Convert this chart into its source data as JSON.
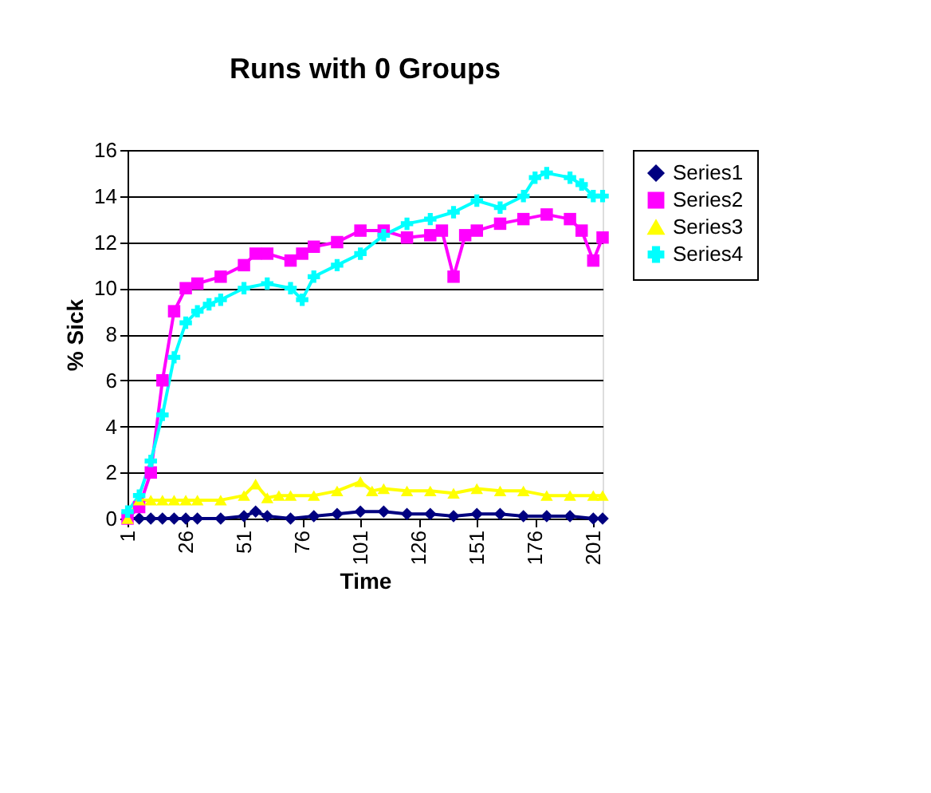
{
  "chart_data": {
    "type": "line",
    "title": "Runs with 0 Groups",
    "xlabel": "Time",
    "ylabel": "% Sick",
    "xlim": [
      1,
      205
    ],
    "xticks": [
      1,
      26,
      51,
      76,
      101,
      126,
      151,
      176,
      201
    ],
    "ylim": [
      0,
      16
    ],
    "yticks": [
      0,
      2,
      4,
      6,
      8,
      10,
      12,
      14,
      16
    ],
    "grid": "y",
    "legend": "right",
    "series": [
      {
        "name": "Series1",
        "color": "#000080",
        "marker": "diamond",
        "x": [
          1,
          6,
          11,
          16,
          21,
          26,
          31,
          41,
          51,
          56,
          61,
          71,
          81,
          91,
          101,
          111,
          121,
          131,
          141,
          151,
          161,
          171,
          181,
          191,
          201,
          205
        ],
        "values": [
          0,
          0,
          0,
          0,
          0,
          0,
          0,
          0,
          0.1,
          0.3,
          0.1,
          0,
          0.1,
          0.2,
          0.3,
          0.3,
          0.2,
          0.2,
          0.1,
          0.2,
          0.2,
          0.1,
          0.1,
          0.1,
          0,
          0
        ]
      },
      {
        "name": "Series2",
        "color": "#ff00ff",
        "marker": "square",
        "x": [
          1,
          6,
          11,
          16,
          21,
          26,
          31,
          41,
          51,
          56,
          61,
          71,
          76,
          81,
          91,
          101,
          111,
          121,
          131,
          136,
          141,
          146,
          151,
          161,
          171,
          181,
          191,
          196,
          201,
          205
        ],
        "values": [
          0,
          0.5,
          2,
          6,
          9,
          10,
          10.2,
          10.5,
          11,
          11.5,
          11.5,
          11.2,
          11.5,
          11.8,
          12,
          12.5,
          12.5,
          12.2,
          12.3,
          12.5,
          10.5,
          12.3,
          12.5,
          12.8,
          13,
          13.2,
          13,
          12.5,
          11.2,
          12.2
        ]
      },
      {
        "name": "Series3",
        "color": "#ffff00",
        "marker": "triangle",
        "x": [
          1,
          6,
          11,
          16,
          21,
          26,
          31,
          41,
          51,
          56,
          61,
          66,
          71,
          81,
          91,
          101,
          106,
          111,
          121,
          131,
          141,
          151,
          161,
          171,
          181,
          191,
          201,
          205
        ],
        "values": [
          0,
          0.8,
          0.8,
          0.8,
          0.8,
          0.8,
          0.8,
          0.8,
          1,
          1.5,
          0.9,
          1,
          1,
          1,
          1.2,
          1.6,
          1.2,
          1.3,
          1.2,
          1.2,
          1.1,
          1.3,
          1.2,
          1.2,
          1,
          1,
          1,
          1
        ]
      },
      {
        "name": "Series4",
        "color": "#00ffff",
        "marker": "cross",
        "x": [
          1,
          6,
          11,
          16,
          21,
          26,
          31,
          36,
          41,
          51,
          61,
          71,
          76,
          81,
          91,
          101,
          111,
          121,
          131,
          141,
          151,
          161,
          171,
          176,
          181,
          191,
          196,
          201,
          205
        ],
        "values": [
          0.3,
          1,
          2.5,
          4.5,
          7,
          8.5,
          9,
          9.3,
          9.5,
          10,
          10.2,
          10,
          9.5,
          10.5,
          11,
          11.5,
          12.3,
          12.8,
          13,
          13.3,
          13.8,
          13.5,
          14,
          14.8,
          15,
          14.8,
          14.5,
          14,
          14
        ]
      }
    ]
  }
}
